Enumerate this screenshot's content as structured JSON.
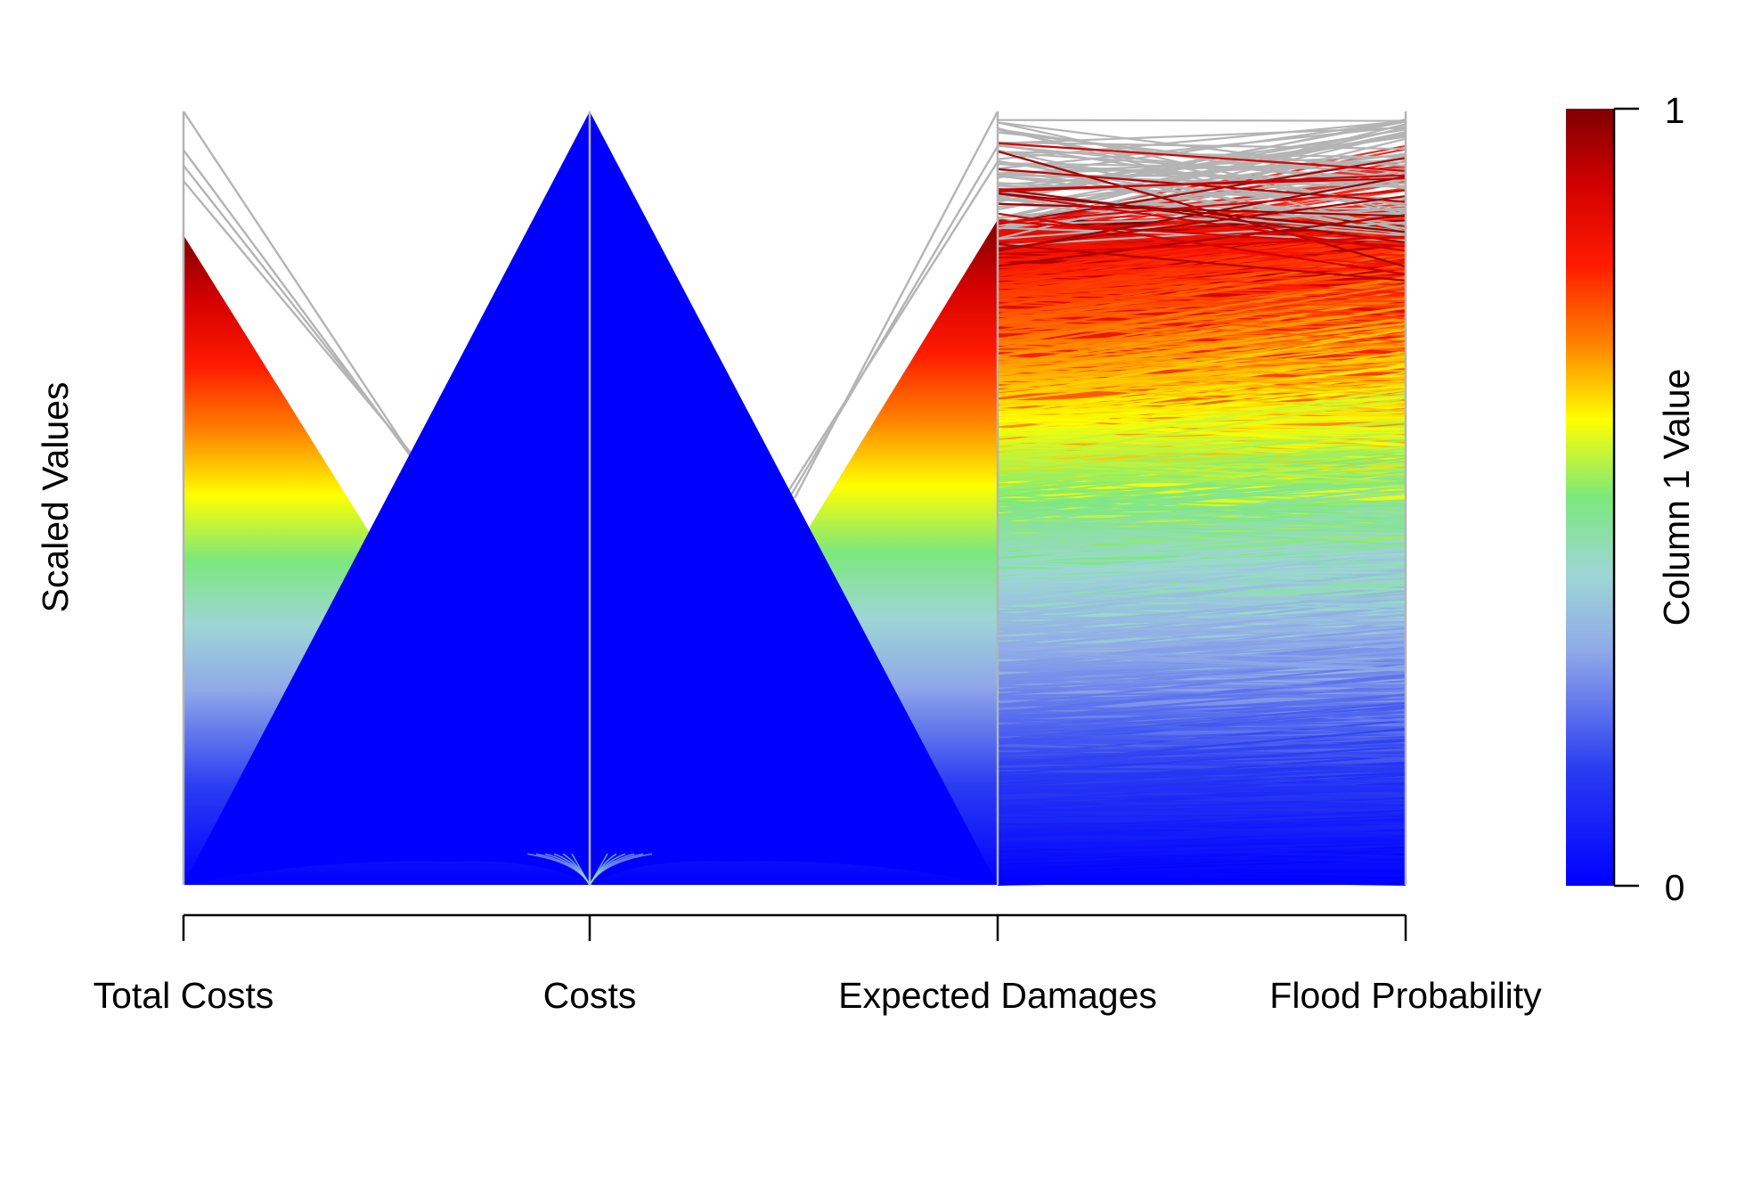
{
  "chart_data": {
    "type": "parallel-coordinates",
    "title": "",
    "ylabel": "Scaled Values",
    "axes": [
      "Total Costs",
      "Costs",
      "Expected Damages",
      "Flood Probability"
    ],
    "ylim": [
      0,
      1
    ],
    "color_scale": {
      "label": "Column 1 Value",
      "range": [
        0,
        1
      ],
      "tick_labels": [
        "0",
        "1"
      ],
      "stops": [
        {
          "value": 0.0,
          "color": "#0000ff"
        },
        {
          "value": 0.15,
          "color": "#2a3cf2"
        },
        {
          "value": 0.3,
          "color": "#8fa8e8"
        },
        {
          "value": 0.4,
          "color": "#9ed6d6"
        },
        {
          "value": 0.5,
          "color": "#7ce87c"
        },
        {
          "value": 0.6,
          "color": "#ffff00"
        },
        {
          "value": 0.7,
          "color": "#ff8000"
        },
        {
          "value": 0.8,
          "color": "#ff1a00"
        },
        {
          "value": 0.9,
          "color": "#d40000"
        },
        {
          "value": 1.0,
          "color": "#800000"
        }
      ]
    },
    "colors": {
      "axis_line": "#b4b4b4",
      "excluded_line": "#b4b4b4",
      "dominant_fill": "#0000ff"
    }
  }
}
